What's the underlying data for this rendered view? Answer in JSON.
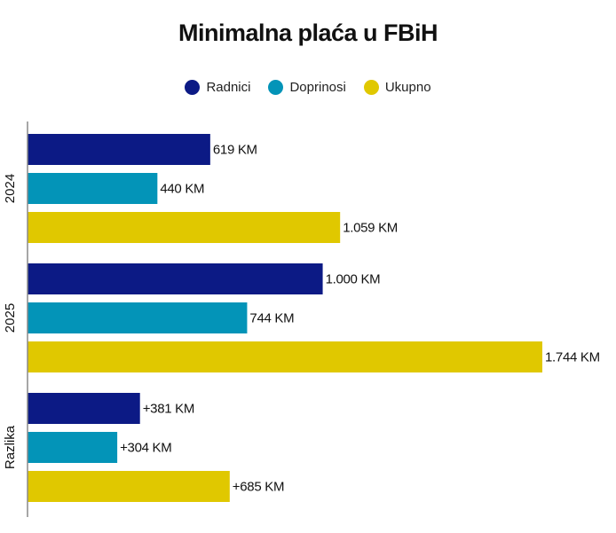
{
  "chart_data": {
    "type": "bar",
    "orientation": "horizontal",
    "title": "Minimalna plaća u FBiH",
    "categories": [
      "2024",
      "2025",
      "Razlika"
    ],
    "series": [
      {
        "name": "Radnici",
        "color": "#0c1a85",
        "values": [
          619,
          1000,
          381
        ],
        "labels": [
          "619 KM",
          "1.000 KM",
          "+381 KM"
        ]
      },
      {
        "name": "Doprinosi",
        "color": "#0394b8",
        "values": [
          440,
          744,
          304
        ],
        "labels": [
          "440 KM",
          "744 KM",
          "+304 KM"
        ]
      },
      {
        "name": "Ukupno",
        "color": "#e0c800",
        "values": [
          1059,
          1744,
          685
        ],
        "labels": [
          "1.059 KM",
          "1.744 KM",
          "+685 KM"
        ]
      }
    ],
    "xlim": [
      0,
      1744
    ],
    "grid": false,
    "legend_position": "top-center"
  }
}
